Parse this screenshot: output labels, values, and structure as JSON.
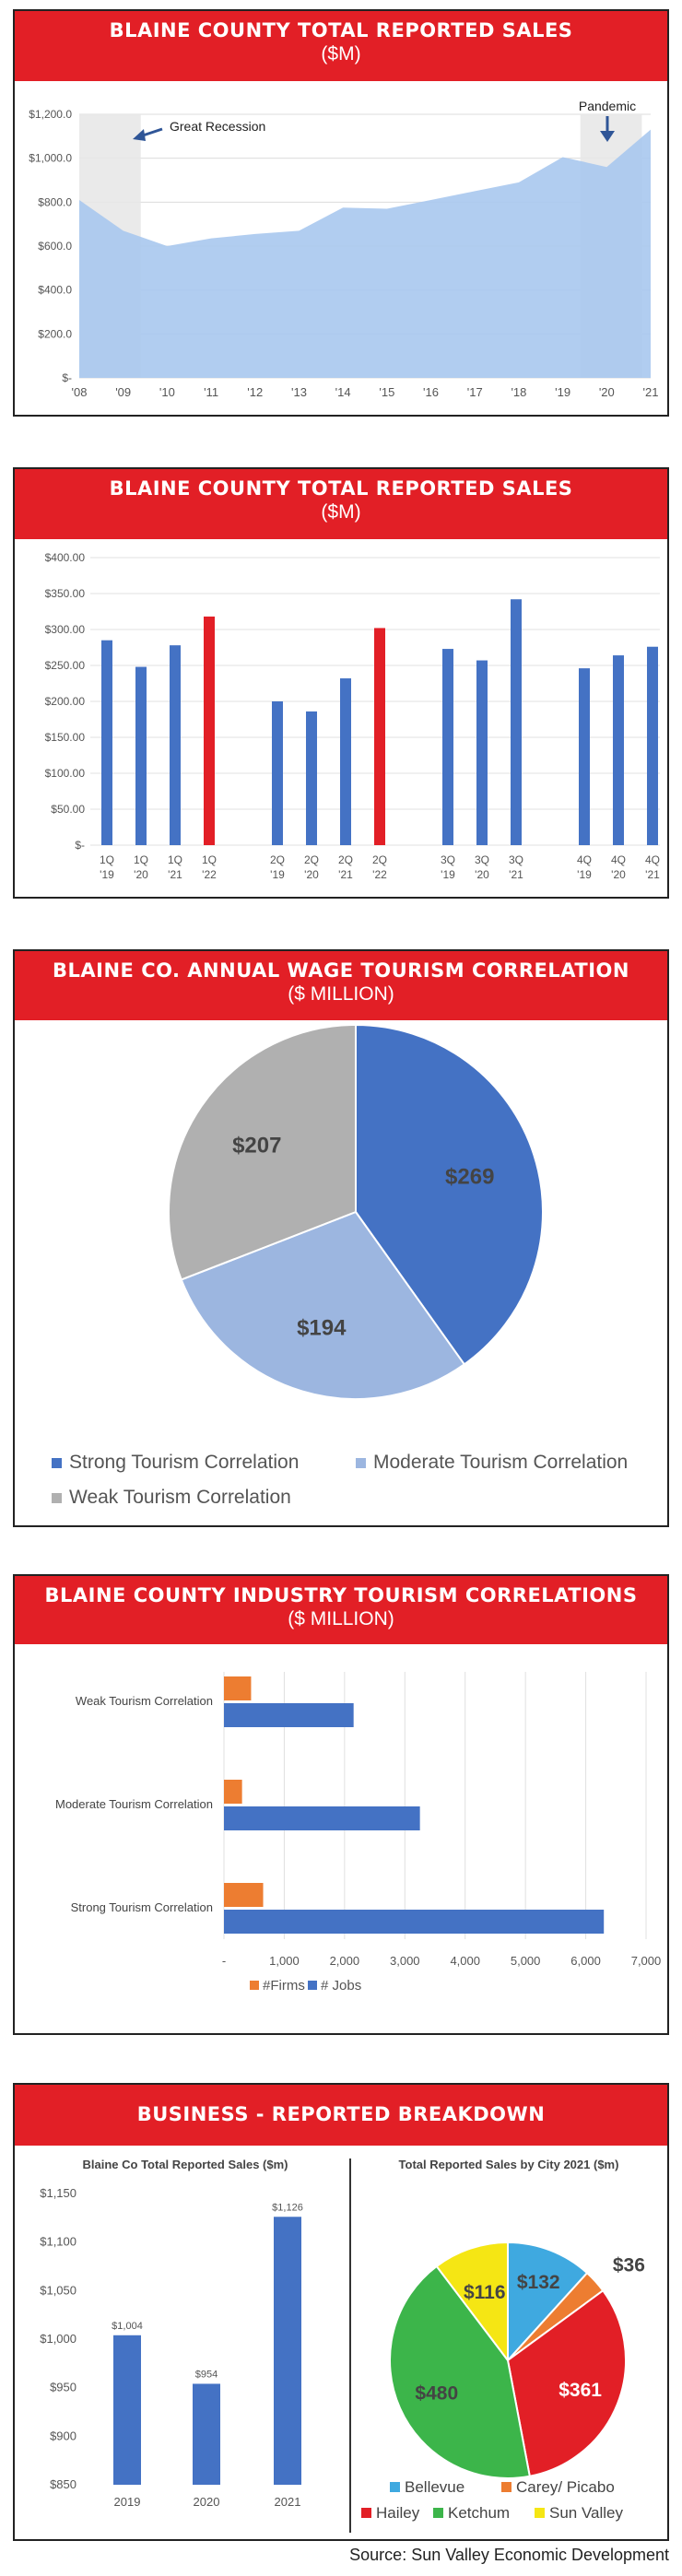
{
  "panels": [
    {
      "title": "BLAINE COUNTY TOTAL REPORTED SALES",
      "subtitle": "($M)"
    },
    {
      "title": "BLAINE COUNTY TOTAL REPORTED SALES",
      "subtitle": "($M)"
    },
    {
      "title": "BLAINE CO. ANNUAL WAGE TOURISM CORRELATION",
      "subtitle": "($ MILLION)"
    },
    {
      "title": "BLAINE COUNTY INDUSTRY TOURISM CORRELATIONS",
      "subtitle": "($ MILLION)"
    },
    {
      "title": "BUSINESS - REPORTED BREAKDOWN",
      "subtitle": ""
    }
  ],
  "source": "Source: Sun Valley Economic Development",
  "colors": {
    "banner": "#e21f26",
    "blue": "#4472c4",
    "light_blue": "#a9c8ee",
    "red": "#e21f26",
    "gray": "#b0b0b0",
    "orange": "#ed7d31",
    "green": "#3cb54a",
    "yellow": "#f5e614",
    "cyan": "#3fa9e0"
  },
  "chart_data": [
    {
      "type": "area",
      "x": [
        "'08",
        "'09",
        "'10",
        "'11",
        "'12",
        "'13",
        "'14",
        "'15",
        "'16",
        "'17",
        "'18",
        "'19",
        "'20",
        "'21"
      ],
      "values": [
        810,
        670,
        600,
        635,
        655,
        670,
        775,
        770,
        810,
        850,
        890,
        1005,
        960,
        1130
      ],
      "y_ticks": [
        "$-",
        "$200.0",
        "$400.0",
        "$600.0",
        "$800.0",
        "$1,000.0",
        "$1,200.0"
      ],
      "ylim": [
        0,
        1200
      ],
      "shaded_periods": [
        {
          "from": 0,
          "to": 1.4
        },
        {
          "from": 11.4,
          "to": 12.8
        }
      ],
      "annotations": [
        "Great Recession",
        "Pandemic"
      ]
    },
    {
      "type": "bar",
      "categories": [
        "1Q '19",
        "1Q '20",
        "1Q '21",
        "1Q '22",
        "2Q '19",
        "2Q '20",
        "2Q '21",
        "2Q '22",
        "3Q '19",
        "3Q '20",
        "3Q '21",
        "4Q '19",
        "4Q '20",
        "4Q '21"
      ],
      "values": [
        285,
        248,
        278,
        318,
        200,
        186,
        232,
        302,
        273,
        257,
        342,
        246,
        264,
        276
      ],
      "highlight": [
        3,
        7
      ],
      "y_ticks": [
        "$-",
        "$50.00",
        "$100.00",
        "$150.00",
        "$200.00",
        "$250.00",
        "$300.00",
        "$350.00",
        "$400.00"
      ],
      "ylim": [
        0,
        400
      ]
    },
    {
      "type": "pie",
      "labels": [
        "Strong Tourism Correlation",
        "Moderate Tourism Correlation",
        "Weak Tourism Correlation"
      ],
      "values": [
        269,
        194,
        207
      ],
      "value_labels": [
        "$269",
        "$194",
        "$207"
      ]
    },
    {
      "type": "bar",
      "orientation": "horizontal",
      "categories": [
        "Weak Tourism Correlation",
        "Moderate Tourism Correlation",
        "Strong Tourism Correlation"
      ],
      "series": [
        {
          "name": "#Firms",
          "values": [
            450,
            300,
            650
          ]
        },
        {
          "name": "# Jobs",
          "values": [
            2150,
            3250,
            6300
          ]
        }
      ],
      "x_ticks": [
        "-",
        "1,000",
        "2,000",
        "3,000",
        "4,000",
        "5,000",
        "6,000",
        "7,000"
      ],
      "xlim": [
        0,
        7000
      ],
      "legend": "bottom"
    },
    {
      "type": "bar",
      "title": "Blaine Co Total Reported Sales ($m)",
      "categories": [
        "2019",
        "2020",
        "2021"
      ],
      "values": [
        1004,
        954,
        1126
      ],
      "value_labels": [
        "$1,004",
        "$954",
        "$1,126"
      ],
      "y_ticks": [
        "$850",
        "$900",
        "$950",
        "$1,000",
        "$1,050",
        "$1,100",
        "$1,150"
      ],
      "ylim": [
        850,
        1150
      ]
    },
    {
      "type": "pie",
      "title": "Total Reported Sales by City 2021 ($m)",
      "labels": [
        "Bellevue",
        "Carey/ Picabo",
        "Hailey",
        "Ketchum",
        "Sun Valley"
      ],
      "values": [
        132,
        36,
        361,
        480,
        116
      ],
      "value_labels": [
        "$132",
        "$36",
        "$361",
        "$480",
        "$116"
      ],
      "legend": "bottom"
    }
  ]
}
